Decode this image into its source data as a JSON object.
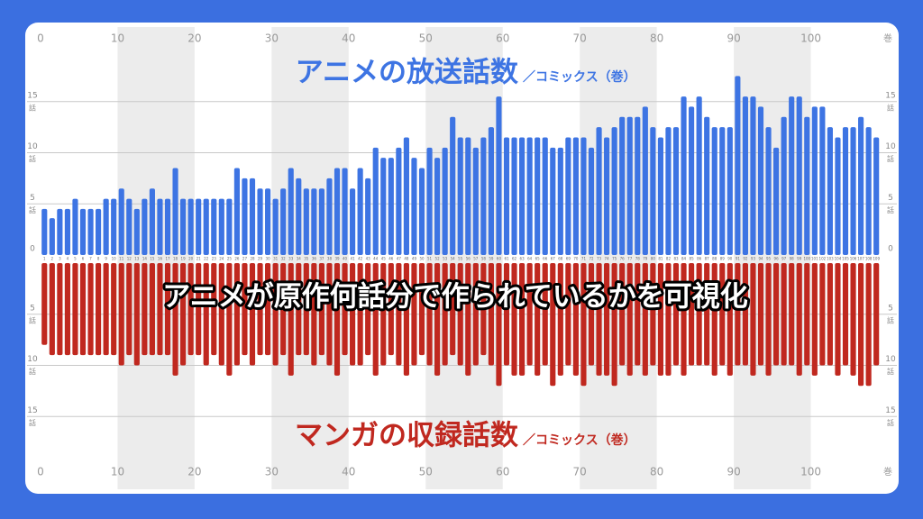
{
  "chart_data": {
    "type": "diverging-bar",
    "subtitle": "／コミックス（巻）",
    "annotation": "アニメが原作何話分で作られているかを可視化",
    "x_unit": "巻",
    "y_unit": "話",
    "categories": [
      1,
      2,
      3,
      4,
      5,
      6,
      7,
      8,
      9,
      10,
      11,
      12,
      13,
      14,
      15,
      16,
      17,
      18,
      19,
      20,
      21,
      22,
      23,
      24,
      25,
      26,
      27,
      28,
      29,
      30,
      31,
      32,
      33,
      34,
      35,
      36,
      37,
      38,
      39,
      40,
      41,
      42,
      43,
      44,
      45,
      46,
      47,
      48,
      49,
      50,
      51,
      52,
      53,
      54,
      55,
      56,
      57,
      58,
      59,
      60,
      61,
      62,
      63,
      64,
      65,
      66,
      67,
      68,
      69,
      70,
      71,
      72,
      73,
      74,
      75,
      76,
      77,
      78,
      79,
      80,
      81,
      82,
      83,
      84,
      85,
      86,
      87,
      88,
      89,
      90,
      91,
      92,
      93,
      94,
      95,
      96,
      97,
      98,
      99,
      100,
      101,
      102,
      103,
      104,
      105,
      106,
      107,
      108,
      109
    ],
    "series": [
      {
        "name": "アニメの放送話数",
        "color": "#3d74e3",
        "direction": "up",
        "values": [
          4.5,
          3.6,
          4.5,
          4.5,
          5.5,
          4.5,
          4.5,
          4.5,
          5.5,
          5.5,
          6.5,
          5.5,
          4.5,
          5.5,
          6.5,
          5.5,
          5.5,
          8.5,
          5.5,
          5.5,
          5.5,
          5.5,
          5.5,
          5.5,
          5.5,
          8.5,
          7.5,
          7.5,
          6.5,
          6.5,
          5.5,
          6.5,
          8.5,
          7.5,
          6.5,
          6.5,
          6.5,
          7.5,
          8.5,
          8.5,
          6.5,
          8.5,
          7.5,
          10.5,
          9.5,
          9.5,
          10.5,
          11.5,
          9.5,
          8.5,
          10.5,
          9.5,
          10.5,
          13.5,
          11.5,
          11.5,
          10.5,
          11.5,
          12.5,
          15.5,
          11.5,
          11.5,
          11.5,
          11.5,
          11.5,
          11.5,
          10.5,
          10.5,
          11.5,
          11.5,
          11.5,
          10.5,
          12.5,
          11.5,
          12.5,
          13.5,
          13.5,
          13.5,
          14.5,
          12.5,
          11.5,
          12.5,
          12.5,
          15.5,
          14.5,
          15.5,
          13.5,
          12.5,
          12.5,
          12.5,
          17.5,
          15.5,
          15.5,
          14.5,
          12.5,
          10.5,
          13.5,
          15.5,
          15.5,
          13.5,
          14.5,
          14.5,
          12.5,
          11.5,
          12.5,
          12.5,
          13.5,
          12.5,
          11.5
        ]
      },
      {
        "name": "マンガの収録話数",
        "color": "#c0281f",
        "direction": "down",
        "values": [
          8,
          9,
          9,
          9,
          9,
          9,
          9,
          9,
          9,
          9,
          10,
          9,
          10,
          9,
          9,
          9,
          9,
          11,
          10,
          9,
          9,
          10,
          9,
          10,
          11,
          10,
          9,
          10,
          9,
          9,
          10,
          9,
          11,
          9,
          9,
          10,
          9,
          10,
          11,
          9,
          10,
          10,
          9,
          11,
          10,
          9,
          10,
          11,
          10,
          9,
          10,
          11,
          10,
          9,
          10,
          11,
          10,
          9,
          10,
          12,
          10,
          11,
          11,
          10,
          11,
          10,
          12,
          11,
          10,
          11,
          12,
          10,
          11,
          11,
          12,
          10,
          11,
          10,
          11,
          10,
          11,
          11,
          10,
          11,
          10,
          10,
          10,
          11,
          10,
          11,
          10,
          10,
          11,
          10,
          11,
          10,
          10,
          10,
          11,
          10,
          11,
          10,
          10,
          11,
          10,
          11,
          12,
          12,
          10
        ]
      }
    ],
    "xlim": [
      0,
      110
    ],
    "xticks": [
      0,
      10,
      20,
      30,
      40,
      50,
      60,
      70,
      80,
      90,
      100
    ],
    "ylim": [
      0,
      17
    ],
    "yticks": [
      0,
      5,
      10,
      15
    ],
    "grid": true
  }
}
